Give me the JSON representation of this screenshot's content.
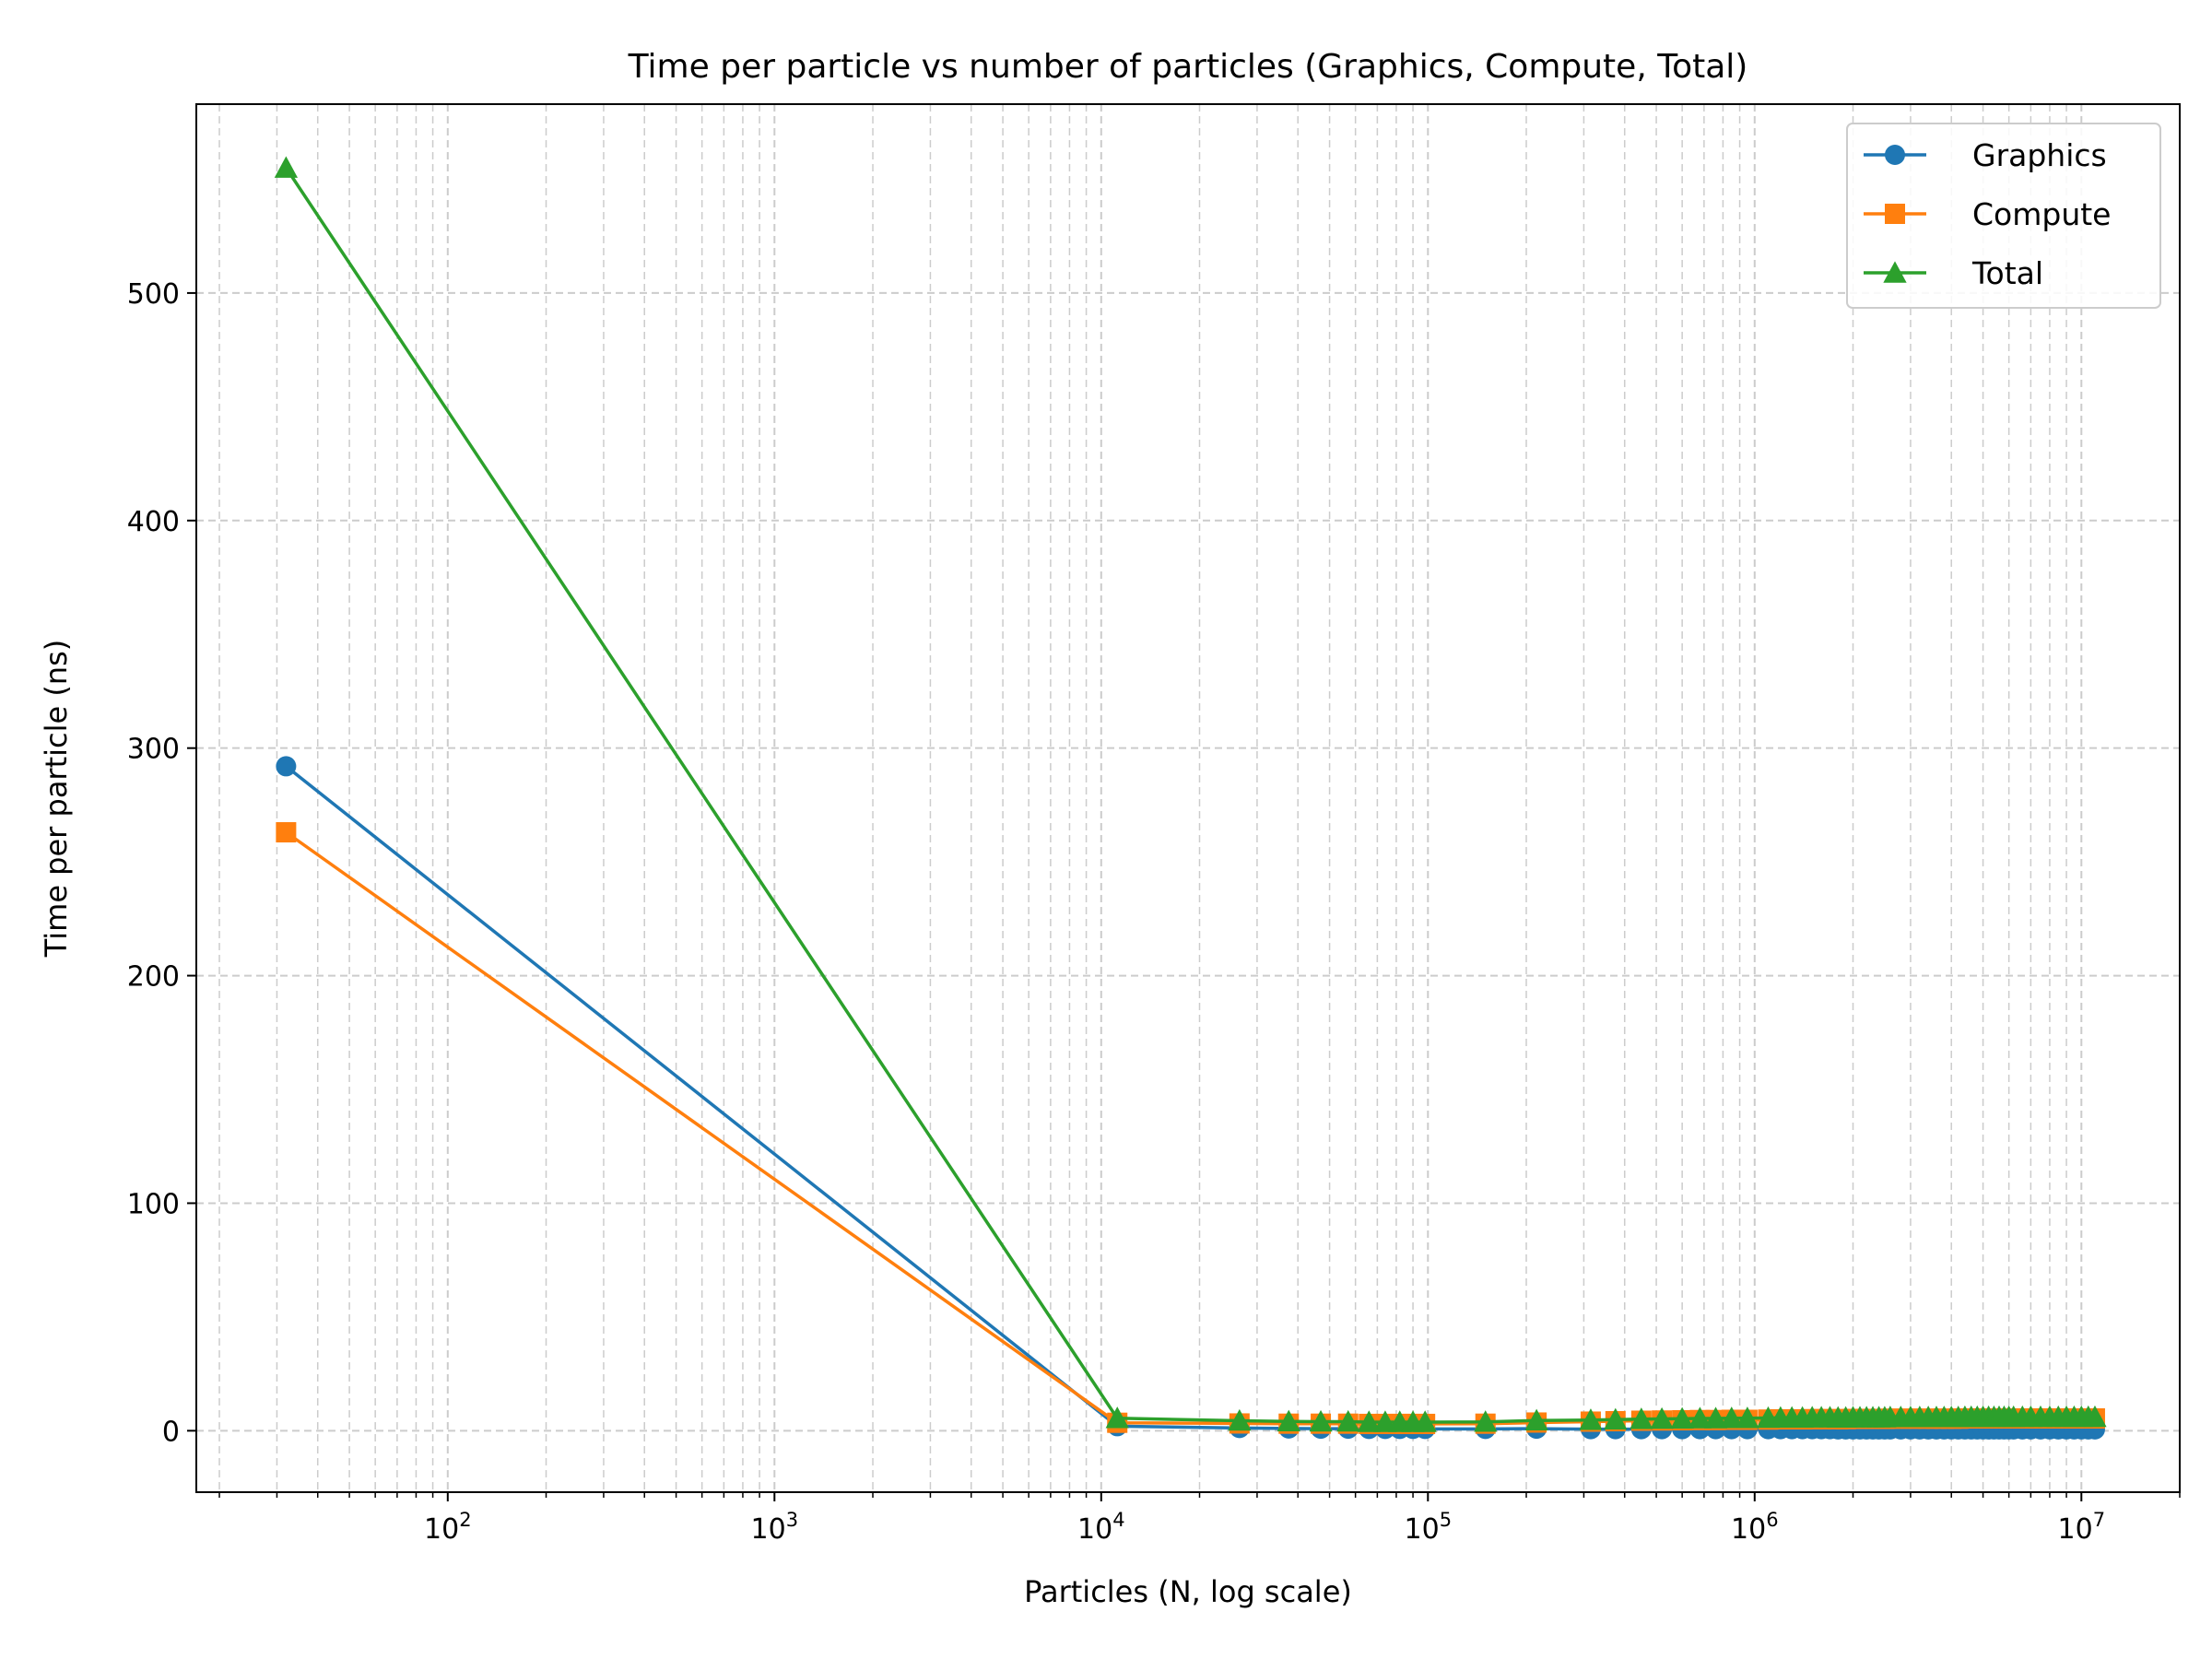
{
  "chart_data": {
    "type": "line",
    "title": "Time per particle vs number of particles (Graphics, Compute, Total)",
    "xlabel": "Particles (N, log scale)",
    "ylabel": "Time per particle (ns)",
    "xscale": "log",
    "xlim": [
      17,
      20000000
    ],
    "ylim": [
      -27,
      583
    ],
    "grid": true,
    "legend_position": "top-right",
    "x_ticks": [
      {
        "value": 100,
        "base": "10",
        "exp": "2"
      },
      {
        "value": 1000,
        "base": "10",
        "exp": "3"
      },
      {
        "value": 10000,
        "base": "10",
        "exp": "4"
      },
      {
        "value": 100000,
        "base": "10",
        "exp": "5"
      },
      {
        "value": 1000000,
        "base": "10",
        "exp": "6"
      },
      {
        "value": 10000000,
        "base": "10",
        "exp": "7"
      }
    ],
    "y_ticks": [
      0,
      100,
      200,
      300,
      400,
      500
    ],
    "x": [
      32,
      11200,
      26500,
      37500,
      47000,
      57000,
      66000,
      74000,
      82000,
      90000,
      98000,
      150000,
      215000,
      315000,
      375000,
      450000,
      520000,
      600000,
      680000,
      760000,
      850000,
      950000,
      1100000,
      1200000,
      1300000,
      1400000,
      1500000,
      1600000,
      1700000,
      1800000,
      1900000,
      2000000,
      2100000,
      2200000,
      2300000,
      2400000,
      2500000,
      2600000,
      2800000,
      3000000,
      3200000,
      3400000,
      3600000,
      3800000,
      4000000,
      4200000,
      4400000,
      4600000,
      4800000,
      5000000,
      5200000,
      5400000,
      5600000,
      5800000,
      6000000,
      6200000,
      6600000,
      7000000,
      7500000,
      8000000,
      8500000,
      9000000,
      9500000,
      10000000,
      10500000,
      11000000
    ],
    "series": [
      {
        "name": "Graphics",
        "color": "#1f77b4",
        "marker": "circle",
        "values": [
          292,
          2,
          1.2,
          1,
          0.9,
          0.9,
          0.8,
          0.8,
          0.8,
          0.8,
          0.8,
          0.8,
          0.9,
          0.7,
          0.7,
          0.7,
          0.7,
          0.7,
          0.7,
          0.7,
          0.7,
          0.7,
          0.7,
          0.7,
          0.7,
          0.7,
          0.7,
          0.7,
          0.7,
          0.6,
          0.6,
          0.6,
          0.6,
          0.6,
          0.6,
          0.6,
          0.6,
          0.6,
          0.6,
          0.6,
          0.6,
          0.6,
          0.6,
          0.6,
          0.6,
          0.6,
          0.6,
          0.6,
          0.6,
          0.6,
          0.6,
          0.6,
          0.6,
          0.6,
          0.6,
          0.6,
          0.6,
          0.6,
          0.6,
          0.6,
          0.6,
          0.6,
          0.6,
          0.6,
          0.6,
          0.6
        ]
      },
      {
        "name": "Compute",
        "color": "#ff7f0e",
        "marker": "square",
        "values": [
          263,
          3.5,
          3.2,
          3.1,
          3.1,
          3.1,
          3.0,
          3.0,
          3.0,
          3.0,
          3.0,
          3.1,
          3.6,
          4.0,
          4.2,
          4.4,
          4.5,
          4.6,
          4.7,
          4.7,
          4.8,
          4.8,
          4.9,
          5.0,
          5.0,
          5.0,
          5.1,
          5.1,
          5.1,
          5.1,
          5.1,
          5.2,
          5.2,
          5.2,
          5.2,
          5.2,
          5.2,
          5.3,
          5.3,
          5.3,
          5.3,
          5.3,
          5.3,
          5.3,
          5.3,
          5.3,
          5.4,
          5.4,
          5.4,
          5.4,
          5.4,
          5.4,
          5.4,
          5.4,
          5.4,
          5.4,
          5.4,
          5.4,
          5.4,
          5.4,
          5.4,
          5.4,
          5.4,
          5.4,
          5.4,
          5.4
        ]
      },
      {
        "name": "Total",
        "color": "#2ca02c",
        "marker": "triangle",
        "values": [
          555,
          5.5,
          4.4,
          4.1,
          4.0,
          4.0,
          3.8,
          3.8,
          3.8,
          3.8,
          3.8,
          3.9,
          4.5,
          4.7,
          4.9,
          5.1,
          5.2,
          5.3,
          5.4,
          5.4,
          5.5,
          5.5,
          5.6,
          5.7,
          5.7,
          5.7,
          5.8,
          5.8,
          5.8,
          5.7,
          5.7,
          5.8,
          5.8,
          5.8,
          5.8,
          5.8,
          5.8,
          5.9,
          5.9,
          5.9,
          5.9,
          5.9,
          5.9,
          5.9,
          5.9,
          5.9,
          6.0,
          6.0,
          6.0,
          6.0,
          6.0,
          6.0,
          6.0,
          6.0,
          6.0,
          6.0,
          6.0,
          6.0,
          6.0,
          6.0,
          6.0,
          6.0,
          6.0,
          6.0,
          6.0,
          6.0
        ]
      }
    ]
  }
}
